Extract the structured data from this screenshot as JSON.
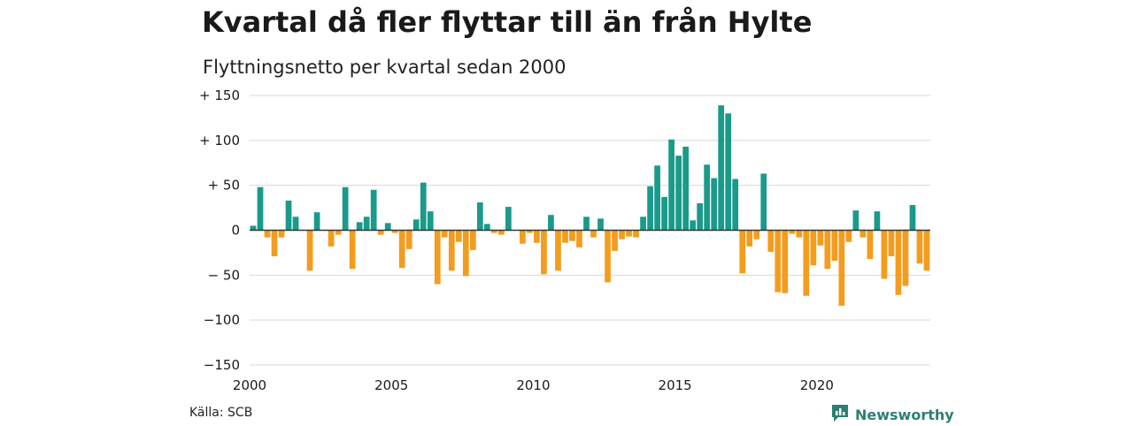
{
  "title": "Kvartal då fler flyttar till än från Hylte",
  "subtitle": "Flyttningsnetto per kvartal sedan 2000",
  "source": "Källa: SCB",
  "brand": "Newsworthy",
  "colors": {
    "positive": "#1a9a8a",
    "negative": "#f39c1e",
    "grid": "#d9d9d9",
    "brand": "#2e7f73"
  },
  "chart_data": {
    "type": "bar",
    "title": "Kvartal då fler flyttar till än från Hylte",
    "subtitle": "Flyttningsnetto per kvartal sedan 2000",
    "xlabel": "",
    "ylabel": "",
    "ylim": [
      -150,
      150
    ],
    "yticks": [
      150,
      100,
      50,
      0,
      -50,
      -100,
      -150
    ],
    "ytick_labels": [
      "+ 150",
      "+ 100",
      "+  50",
      "0",
      "− 50",
      "−100",
      "−150"
    ],
    "xlim": [
      2000,
      2024
    ],
    "xticks": [
      2000,
      2005,
      2010,
      2015,
      2020
    ],
    "xtick_labels": [
      "2000",
      "2005",
      "2010",
      "2015",
      "2020"
    ],
    "grid": true,
    "categories": [
      "2000 Q1",
      "2000 Q2",
      "2000 Q3",
      "2000 Q4",
      "2001 Q1",
      "2001 Q2",
      "2001 Q3",
      "2001 Q4",
      "2002 Q1",
      "2002 Q2",
      "2002 Q3",
      "2002 Q4",
      "2003 Q1",
      "2003 Q2",
      "2003 Q3",
      "2003 Q4",
      "2004 Q1",
      "2004 Q2",
      "2004 Q3",
      "2004 Q4",
      "2005 Q1",
      "2005 Q2",
      "2005 Q3",
      "2005 Q4",
      "2006 Q1",
      "2006 Q2",
      "2006 Q3",
      "2006 Q4",
      "2007 Q1",
      "2007 Q2",
      "2007 Q3",
      "2007 Q4",
      "2008 Q1",
      "2008 Q2",
      "2008 Q3",
      "2008 Q4",
      "2009 Q1",
      "2009 Q2",
      "2009 Q3",
      "2009 Q4",
      "2010 Q1",
      "2010 Q2",
      "2010 Q3",
      "2010 Q4",
      "2011 Q1",
      "2011 Q2",
      "2011 Q3",
      "2011 Q4",
      "2012 Q1",
      "2012 Q2",
      "2012 Q3",
      "2012 Q4",
      "2013 Q1",
      "2013 Q2",
      "2013 Q3",
      "2013 Q4",
      "2014 Q1",
      "2014 Q2",
      "2014 Q3",
      "2014 Q4",
      "2015 Q1",
      "2015 Q2",
      "2015 Q3",
      "2015 Q4",
      "2016 Q1",
      "2016 Q2",
      "2016 Q3",
      "2016 Q4",
      "2017 Q1",
      "2017 Q2",
      "2017 Q3",
      "2017 Q4",
      "2018 Q1",
      "2018 Q2",
      "2018 Q3",
      "2018 Q4",
      "2019 Q1",
      "2019 Q2",
      "2019 Q3",
      "2019 Q4",
      "2020 Q1",
      "2020 Q2",
      "2020 Q3",
      "2020 Q4",
      "2021 Q1",
      "2021 Q2",
      "2021 Q3",
      "2021 Q4",
      "2022 Q1",
      "2022 Q2",
      "2022 Q3",
      "2022 Q4",
      "2023 Q1",
      "2023 Q2",
      "2023 Q3",
      "2023 Q4"
    ],
    "values": [
      5,
      48,
      -8,
      -29,
      -8,
      33,
      15,
      0,
      -45,
      20,
      0,
      -18,
      -5,
      48,
      -43,
      9,
      15,
      45,
      -5,
      8,
      -3,
      -42,
      -21,
      12,
      53,
      21,
      -60,
      -8,
      -45,
      -13,
      -51,
      -22,
      31,
      7,
      -3,
      -5,
      26,
      0,
      -15,
      -3,
      -14,
      -49,
      17,
      -45,
      -14,
      -12,
      -19,
      15,
      -8,
      13,
      -58,
      -23,
      -10,
      -7,
      -8,
      15,
      49,
      72,
      37,
      101,
      83,
      93,
      11,
      30,
      73,
      58,
      139,
      130,
      57,
      -48,
      -18,
      -10,
      63,
      -24,
      -69,
      -70,
      -4,
      -8,
      -73,
      -39,
      -17,
      -43,
      -34,
      -84,
      -13,
      22,
      -8,
      -32,
      21,
      -54,
      -29,
      -72,
      -62,
      28,
      -37,
      -45
    ]
  }
}
